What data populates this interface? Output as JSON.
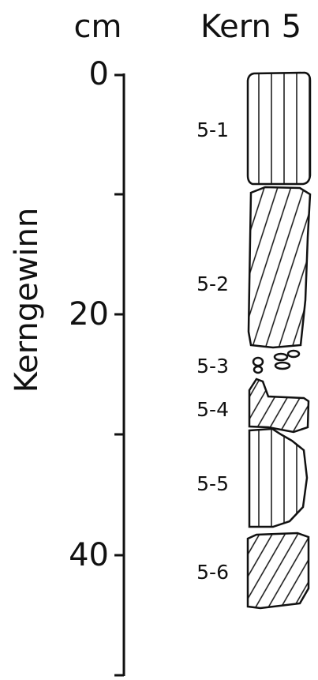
{
  "header": {
    "unit": "cm",
    "title": "Kern 5"
  },
  "axis": {
    "label": "Kerngewinn",
    "ticks": [
      0,
      20,
      40
    ]
  },
  "segments": [
    {
      "label": "5-1"
    },
    {
      "label": "5-2"
    },
    {
      "label": "5-3"
    },
    {
      "label": "5-4"
    },
    {
      "label": "5-5"
    },
    {
      "label": "5-6"
    }
  ]
}
